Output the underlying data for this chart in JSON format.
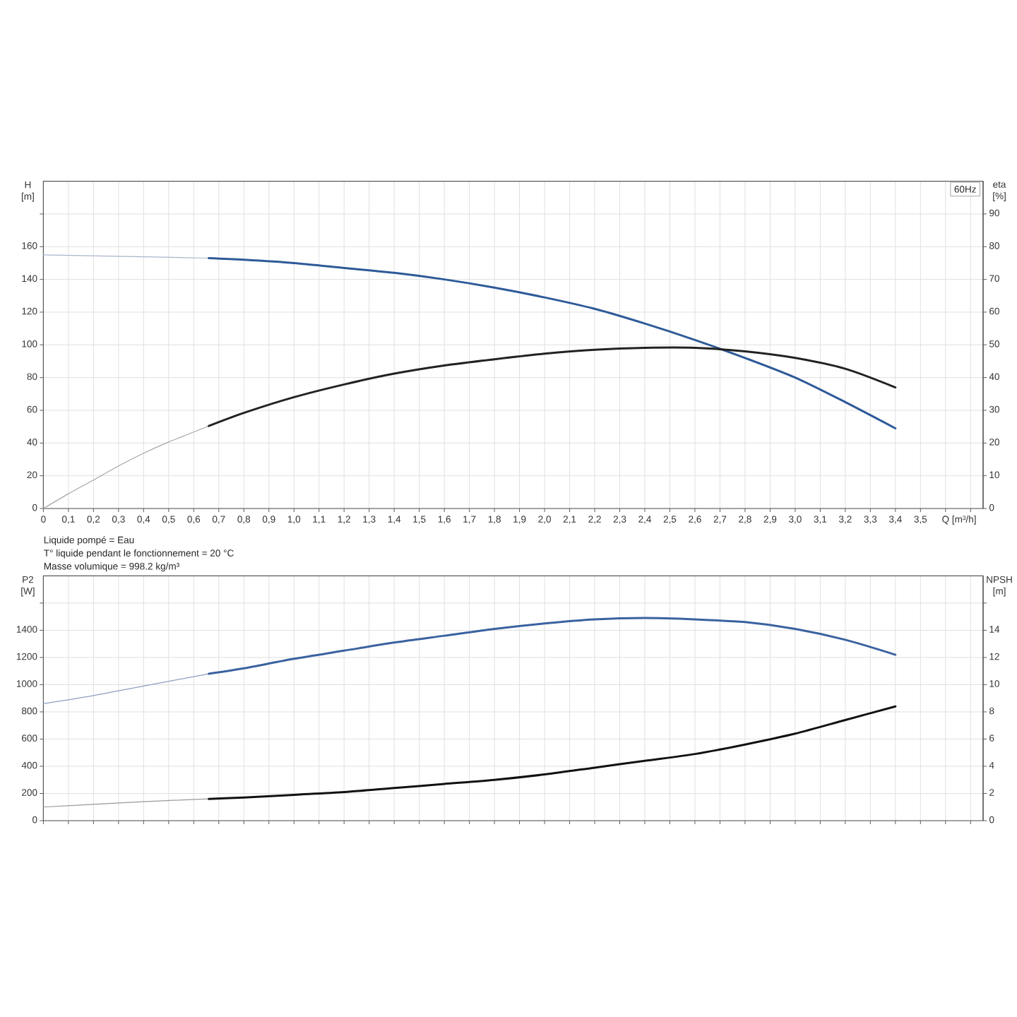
{
  "chart_data": [
    {
      "type": "line",
      "title": "60Hz",
      "xlabel": "Q [m³/h]",
      "ylabel": "H [m]",
      "y2label": "eta [%]",
      "xlim": [
        0,
        3.75
      ],
      "xticks": [
        0,
        {
          "value": 0.1,
          "label": "0,1"
        },
        {
          "value": 0.2,
          "label": "0,2"
        },
        {
          "value": 0.3,
          "label": "0,3"
        },
        {
          "value": 0.4,
          "label": "0,4"
        },
        {
          "value": 0.5,
          "label": "0,5"
        },
        {
          "value": 0.6,
          "label": "0,6"
        },
        {
          "value": 0.7,
          "label": "0,7"
        },
        {
          "value": 0.8,
          "label": "0,8"
        },
        {
          "value": 0.9,
          "label": "0,9"
        },
        {
          "value": 1.0,
          "label": "1,0"
        },
        {
          "value": 1.1,
          "label": "1,1"
        },
        {
          "value": 1.2,
          "label": "1,2"
        },
        {
          "value": 1.3,
          "label": "1,3"
        },
        {
          "value": 1.4,
          "label": "1,4"
        },
        {
          "value": 1.5,
          "label": "1,5"
        },
        {
          "value": 1.6,
          "label": "1,6"
        },
        {
          "value": 1.7,
          "label": "1,7"
        },
        {
          "value": 1.8,
          "label": "1,8"
        },
        {
          "value": 1.9,
          "label": "1,9"
        },
        {
          "value": 2.0,
          "label": "2,0"
        },
        {
          "value": 2.1,
          "label": "2,1"
        },
        {
          "value": 2.2,
          "label": "2,2"
        },
        {
          "value": 2.3,
          "label": "2,3"
        },
        {
          "value": 2.4,
          "label": "2,4"
        },
        {
          "value": 2.5,
          "label": "2,5"
        },
        {
          "value": 2.6,
          "label": "2,6"
        },
        {
          "value": 2.7,
          "label": "2,7"
        },
        {
          "value": 2.8,
          "label": "2,8"
        },
        {
          "value": 2.9,
          "label": "2,9"
        },
        {
          "value": 3.0,
          "label": "3,0"
        },
        {
          "value": 3.1,
          "label": "3,1"
        },
        {
          "value": 3.2,
          "label": "3,2"
        },
        {
          "value": 3.3,
          "label": "3,3"
        },
        {
          "value": 3.4,
          "label": "3,4"
        },
        {
          "value": 3.5,
          "label": "3,5"
        },
        {
          "value": 3.6,
          "label": null
        },
        {
          "value": 3.7,
          "label": null
        }
      ],
      "ylim": [
        0,
        200
      ],
      "yticks": [
        0,
        20,
        40,
        60,
        80,
        100,
        120,
        140,
        160,
        {
          "value": 180,
          "label": null
        }
      ],
      "y2lim": [
        0,
        100
      ],
      "y2ticks": [
        0,
        10,
        20,
        30,
        40,
        50,
        60,
        70,
        80,
        90
      ],
      "grid": true,
      "series": [
        {
          "color": "#a9b5cb",
          "x": [
            0,
            0.33,
            0.66
          ],
          "values": [
            155,
            154,
            153
          ]
        },
        {
          "color": "#2e5a98",
          "x": [
            0.66,
            0.8,
            1.0,
            1.2,
            1.4,
            1.6,
            1.8,
            2.0,
            2.2,
            2.4,
            2.6,
            2.8,
            3.0,
            3.2,
            3.4
          ],
          "values": [
            153,
            152,
            150,
            147,
            144,
            140,
            135,
            129,
            122,
            113,
            103,
            92,
            80,
            65,
            49
          ]
        },
        {
          "color": "#a6a6a6",
          "axis": "y2",
          "x": [
            0,
            0.1,
            0.2,
            0.3,
            0.4,
            0.5,
            0.66
          ],
          "values": [
            0,
            4.5,
            8.7,
            13,
            16.9,
            20.3,
            25.2
          ]
        },
        {
          "color": "#222222",
          "axis": "y2",
          "x": [
            0.66,
            0.8,
            1.0,
            1.2,
            1.4,
            1.6,
            1.8,
            2.0,
            2.2,
            2.4,
            2.6,
            2.8,
            3.0,
            3.2,
            3.4
          ],
          "values": [
            25.2,
            29.2,
            34,
            37.9,
            41.2,
            43.7,
            45.6,
            47.3,
            48.5,
            49.1,
            49.1,
            48,
            46,
            42.7,
            37
          ]
        }
      ]
    },
    {
      "type": "line",
      "ylabel": "P2 [W]",
      "y2label": "NPSH [m]",
      "annotations": [
        "Liquide pompé = Eau",
        "T° liquide pendant le fonctionnement = 20 °C",
        "Masse volumique = 998.2 kg/m³"
      ],
      "xlim": [
        0,
        3.75
      ],
      "xticks": [
        0,
        0.1,
        0.2,
        0.3,
        0.4,
        0.5,
        0.6,
        0.7,
        0.8,
        0.9,
        1.0,
        1.1,
        1.2,
        1.3,
        1.4,
        1.5,
        1.6,
        1.7,
        1.8,
        1.9,
        2.0,
        2.1,
        2.2,
        2.3,
        2.4,
        2.5,
        2.6,
        2.7,
        2.8,
        2.9,
        3.0,
        3.1,
        3.2,
        3.3,
        3.4,
        3.5,
        3.6,
        3.7
      ],
      "tick_labels": "y",
      "ylim": [
        0,
        1800
      ],
      "yticks": [
        0,
        200,
        400,
        600,
        800,
        1000,
        1200,
        1400,
        {
          "value": 1600,
          "label": null
        }
      ],
      "y2lim": [
        0,
        18
      ],
      "y2ticks": [
        0,
        2,
        4,
        6,
        8,
        10,
        12,
        14,
        {
          "value": 16,
          "label": null
        }
      ],
      "grid": true,
      "series": [
        {
          "color": "#8d9ec0",
          "x": [
            0,
            0.2,
            0.4,
            0.66
          ],
          "values": [
            860,
            920,
            990,
            1080
          ]
        },
        {
          "color": "#3a62a0",
          "x": [
            0.66,
            0.8,
            1.0,
            1.2,
            1.4,
            1.6,
            1.8,
            2.0,
            2.2,
            2.4,
            2.6,
            2.8,
            3.0,
            3.2,
            3.4
          ],
          "values": [
            1080,
            1120,
            1190,
            1250,
            1310,
            1360,
            1410,
            1450,
            1480,
            1490,
            1480,
            1460,
            1410,
            1330,
            1220
          ]
        },
        {
          "color": "#9a9a9a",
          "axis": "y2",
          "x": [
            0,
            0.2,
            0.4,
            0.66
          ],
          "values": [
            1.0,
            1.2,
            1.4,
            1.6
          ]
        },
        {
          "color": "#111111",
          "axis": "y2",
          "x": [
            0.66,
            0.8,
            1.0,
            1.2,
            1.4,
            1.6,
            1.8,
            2.0,
            2.2,
            2.4,
            2.6,
            2.8,
            3.0,
            3.2,
            3.4
          ],
          "values": [
            1.6,
            1.7,
            1.9,
            2.1,
            2.4,
            2.7,
            3.0,
            3.4,
            3.9,
            4.4,
            4.9,
            5.6,
            6.4,
            7.4,
            8.4
          ]
        }
      ]
    }
  ]
}
